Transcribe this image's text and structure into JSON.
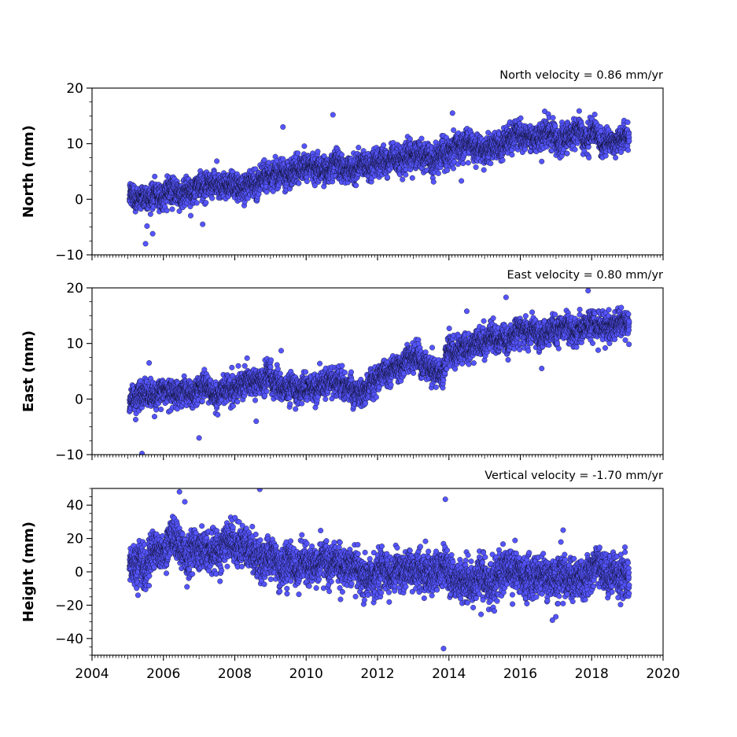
{
  "chart_data": [
    {
      "type": "scatter",
      "title": "North velocity = 0.86 mm/yr",
      "xlabel": "",
      "ylabel": "North (mm)",
      "xlim": [
        2004,
        2020
      ],
      "ylim": [
        -10,
        20
      ],
      "xticks": [
        "2004",
        "2006",
        "2008",
        "2010",
        "2012",
        "2014",
        "2016",
        "2018",
        "2020"
      ],
      "yticks": [
        "−10",
        "0",
        "10",
        "20"
      ],
      "yticks_values": [
        -10,
        0,
        10,
        20
      ],
      "grid": false,
      "marker_color": "#5555ff",
      "edge_color": "#000000",
      "trend_points": [
        [
          2005.1,
          0.5
        ],
        [
          2006.0,
          1.0
        ],
        [
          2007.0,
          2.0
        ],
        [
          2008.0,
          3.2
        ],
        [
          2009.0,
          4.2
        ],
        [
          2010.0,
          5.5
        ],
        [
          2011.0,
          6.3
        ],
        [
          2011.5,
          5.5
        ],
        [
          2012.0,
          6.5
        ],
        [
          2013.0,
          7.5
        ],
        [
          2013.9,
          8.2
        ],
        [
          2014.2,
          9.7
        ],
        [
          2015.0,
          9.5
        ],
        [
          2016.0,
          11.2
        ],
        [
          2016.8,
          11.8
        ],
        [
          2017.5,
          11.5
        ],
        [
          2018.2,
          11.0
        ],
        [
          2019.0,
          12.0
        ]
      ],
      "noise_sd": 1.4,
      "outliers": [
        [
          2009.35,
          13.0
        ],
        [
          2010.75,
          15.2
        ],
        [
          2005.7,
          -6.2
        ],
        [
          2005.5,
          -8.0
        ],
        [
          2007.1,
          -4.5
        ],
        [
          2014.1,
          15.5
        ],
        [
          2014.35,
          3.3
        ],
        [
          2016.6,
          6.8
        ]
      ]
    },
    {
      "type": "scatter",
      "title": "East velocity = 0.80 mm/yr",
      "xlabel": "",
      "ylabel": "East (mm)",
      "xlim": [
        2004,
        2020
      ],
      "ylim": [
        -10,
        20
      ],
      "xticks": [
        "2004",
        "2006",
        "2008",
        "2010",
        "2012",
        "2014",
        "2016",
        "2018",
        "2020"
      ],
      "yticks": [
        "−10",
        "0",
        "10",
        "20"
      ],
      "yticks_values": [
        -10,
        0,
        10,
        20
      ],
      "grid": false,
      "marker_color": "#5555ff",
      "edge_color": "#000000",
      "trend_points": [
        [
          2005.1,
          -0.5
        ],
        [
          2006.0,
          0.5
        ],
        [
          2007.0,
          1.5
        ],
        [
          2008.0,
          2.5
        ],
        [
          2009.0,
          3.5
        ],
        [
          2009.7,
          1.5
        ],
        [
          2010.5,
          3.0
        ],
        [
          2011.0,
          3.5
        ],
        [
          2011.6,
          1.5
        ],
        [
          2012.0,
          5.0
        ],
        [
          2013.0,
          6.5
        ],
        [
          2013.8,
          4.0
        ],
        [
          2014.0,
          10.2
        ],
        [
          2015.0,
          10.5
        ],
        [
          2016.0,
          11.8
        ],
        [
          2017.0,
          13.0
        ],
        [
          2018.0,
          13.8
        ],
        [
          2019.0,
          13.5
        ]
      ],
      "noise_sd": 1.4,
      "outliers": [
        [
          2005.4,
          -9.8
        ],
        [
          2007.0,
          -7.0
        ],
        [
          2005.6,
          6.5
        ],
        [
          2009.3,
          8.7
        ],
        [
          2014.5,
          15.8
        ],
        [
          2015.6,
          18.3
        ],
        [
          2017.9,
          19.5
        ],
        [
          2016.6,
          5.5
        ],
        [
          2008.6,
          -4.0
        ]
      ]
    },
    {
      "type": "scatter",
      "title": "Vertical velocity = -1.70 mm/yr",
      "xlabel": "",
      "ylabel": "Height (mm)",
      "xlim": [
        2004,
        2020
      ],
      "ylim": [
        -50,
        50
      ],
      "xticks": [
        "2004",
        "2006",
        "2008",
        "2010",
        "2012",
        "2014",
        "2016",
        "2018",
        "2020"
      ],
      "yticks": [
        "−40",
        "−20",
        "0",
        "20",
        "40"
      ],
      "yticks_values": [
        -40,
        -20,
        0,
        20,
        40
      ],
      "grid": false,
      "marker_color": "#5555ff",
      "edge_color": "#000000",
      "trend_points": [
        [
          2005.1,
          5.0
        ],
        [
          2006.0,
          14.0
        ],
        [
          2007.0,
          14.0
        ],
        [
          2008.0,
          13.0
        ],
        [
          2009.0,
          12.0
        ],
        [
          2009.7,
          8.0
        ],
        [
          2010.0,
          0.0
        ],
        [
          2011.0,
          0.5
        ],
        [
          2012.0,
          2.0
        ],
        [
          2013.0,
          1.0
        ],
        [
          2014.0,
          1.0
        ],
        [
          2015.0,
          -1.0
        ],
        [
          2016.0,
          -3.0
        ],
        [
          2017.0,
          -6.0
        ],
        [
          2018.0,
          -1.0
        ],
        [
          2019.0,
          2.0
        ]
      ],
      "noise_sd": 7.0,
      "outliers": [
        [
          2006.45,
          48.0
        ],
        [
          2008.7,
          49.5
        ],
        [
          2013.9,
          43.5
        ],
        [
          2013.85,
          -46.0
        ],
        [
          2006.6,
          42.0
        ],
        [
          2014.9,
          -25.5
        ],
        [
          2017.2,
          25.0
        ],
        [
          2016.9,
          -29.0
        ]
      ]
    }
  ]
}
